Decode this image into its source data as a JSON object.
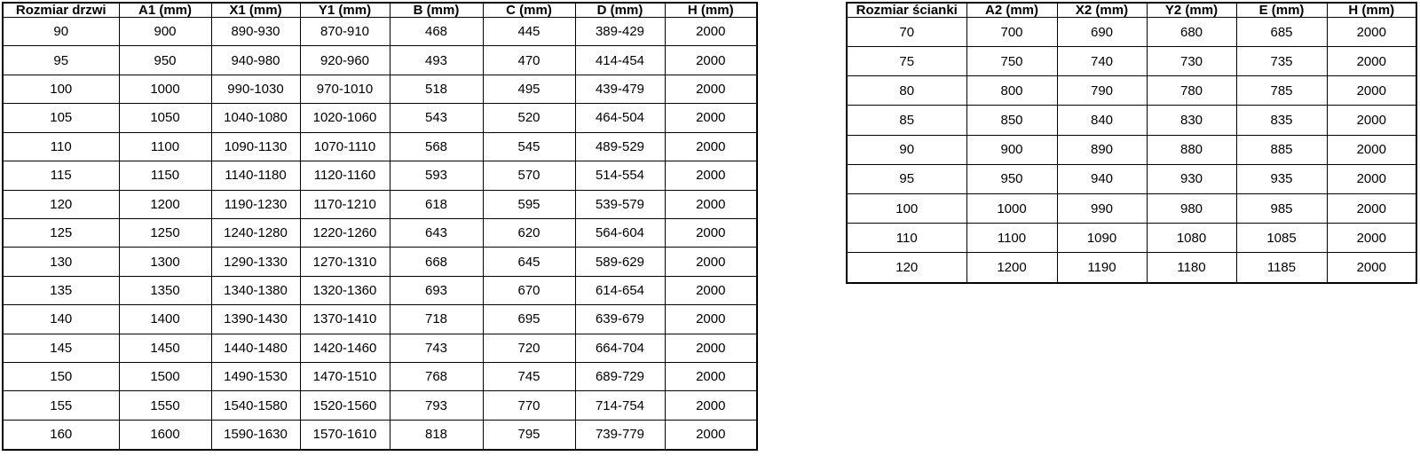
{
  "colors": {
    "background": "#ffffff",
    "border": "#000000",
    "text": "#000000"
  },
  "door_table": {
    "headers": [
      "Rozmiar drzwi",
      "A1 (mm)",
      "X1 (mm)",
      "Y1 (mm)",
      "B (mm)",
      "C (mm)",
      "D (mm)",
      "H (mm)"
    ],
    "rows": [
      [
        "90",
        "900",
        "890-930",
        "870-910",
        "468",
        "445",
        "389-429",
        "2000"
      ],
      [
        "95",
        "950",
        "940-980",
        "920-960",
        "493",
        "470",
        "414-454",
        "2000"
      ],
      [
        "100",
        "1000",
        "990-1030",
        "970-1010",
        "518",
        "495",
        "439-479",
        "2000"
      ],
      [
        "105",
        "1050",
        "1040-1080",
        "1020-1060",
        "543",
        "520",
        "464-504",
        "2000"
      ],
      [
        "110",
        "1100",
        "1090-1130",
        "1070-1110",
        "568",
        "545",
        "489-529",
        "2000"
      ],
      [
        "115",
        "1150",
        "1140-1180",
        "1120-1160",
        "593",
        "570",
        "514-554",
        "2000"
      ],
      [
        "120",
        "1200",
        "1190-1230",
        "1170-1210",
        "618",
        "595",
        "539-579",
        "2000"
      ],
      [
        "125",
        "1250",
        "1240-1280",
        "1220-1260",
        "643",
        "620",
        "564-604",
        "2000"
      ],
      [
        "130",
        "1300",
        "1290-1330",
        "1270-1310",
        "668",
        "645",
        "589-629",
        "2000"
      ],
      [
        "135",
        "1350",
        "1340-1380",
        "1320-1360",
        "693",
        "670",
        "614-654",
        "2000"
      ],
      [
        "140",
        "1400",
        "1390-1430",
        "1370-1410",
        "718",
        "695",
        "639-679",
        "2000"
      ],
      [
        "145",
        "1450",
        "1440-1480",
        "1420-1460",
        "743",
        "720",
        "664-704",
        "2000"
      ],
      [
        "150",
        "1500",
        "1490-1530",
        "1470-1510",
        "768",
        "745",
        "689-729",
        "2000"
      ],
      [
        "155",
        "1550",
        "1540-1580",
        "1520-1560",
        "793",
        "770",
        "714-754",
        "2000"
      ],
      [
        "160",
        "1600",
        "1590-1630",
        "1570-1610",
        "818",
        "795",
        "739-779",
        "2000"
      ]
    ]
  },
  "wall_table": {
    "headers": [
      "Rozmiar ścianki",
      "A2 (mm)",
      "X2 (mm)",
      "Y2 (mm)",
      "E (mm)",
      "H (mm)"
    ],
    "rows": [
      [
        "70",
        "700",
        "690",
        "680",
        "685",
        "2000"
      ],
      [
        "75",
        "750",
        "740",
        "730",
        "735",
        "2000"
      ],
      [
        "80",
        "800",
        "790",
        "780",
        "785",
        "2000"
      ],
      [
        "85",
        "850",
        "840",
        "830",
        "835",
        "2000"
      ],
      [
        "90",
        "900",
        "890",
        "880",
        "885",
        "2000"
      ],
      [
        "95",
        "950",
        "940",
        "930",
        "935",
        "2000"
      ],
      [
        "100",
        "1000",
        "990",
        "980",
        "985",
        "2000"
      ],
      [
        "110",
        "1100",
        "1090",
        "1080",
        "1085",
        "2000"
      ],
      [
        "120",
        "1200",
        "1190",
        "1180",
        "1185",
        "2000"
      ]
    ]
  }
}
